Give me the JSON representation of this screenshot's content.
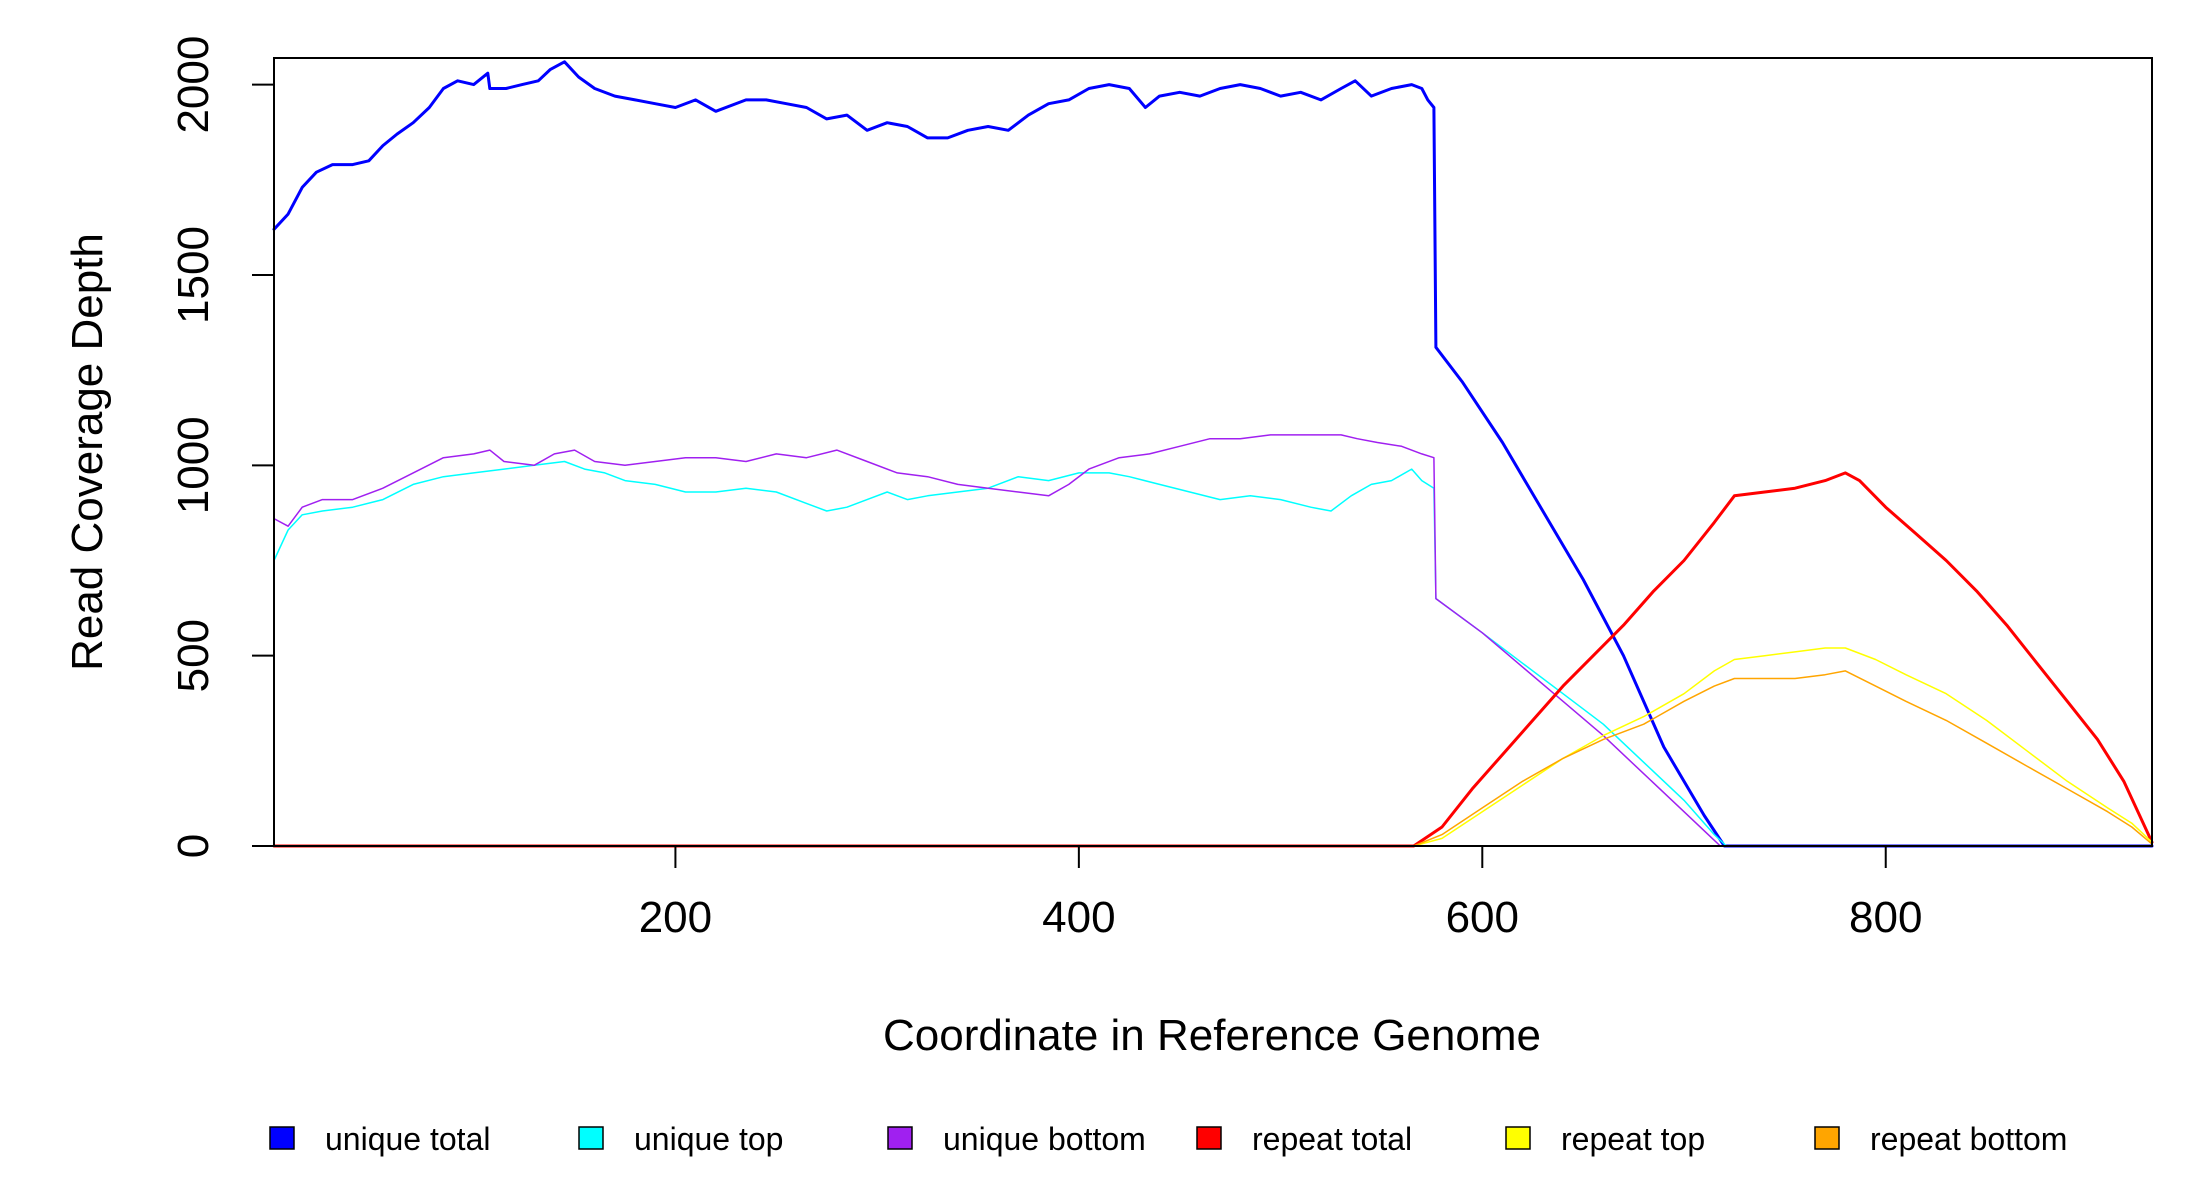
{
  "chart_data": {
    "type": "line",
    "title": "",
    "xlabel": "Coordinate in Reference Genome",
    "ylabel": "Read Coverage Depth",
    "xlim": [
      1,
      932
    ],
    "ylim": [
      0,
      2070
    ],
    "x_ticks": [
      200,
      400,
      600,
      800
    ],
    "x_tick_labels": [
      "200",
      "400",
      "600",
      "800"
    ],
    "y_ticks": [
      0,
      500,
      1000,
      1500,
      2000
    ],
    "y_tick_labels": [
      "0",
      "500",
      "1000",
      "1500",
      "2000"
    ],
    "grid": false,
    "legend_position": "bottom",
    "series": [
      {
        "name": "unique total",
        "color": "#0000FF",
        "width": 3,
        "points": [
          [
            1,
            1620
          ],
          [
            8,
            1660
          ],
          [
            15,
            1730
          ],
          [
            22,
            1770
          ],
          [
            30,
            1790
          ],
          [
            40,
            1790
          ],
          [
            48,
            1800
          ],
          [
            55,
            1840
          ],
          [
            62,
            1870
          ],
          [
            70,
            1900
          ],
          [
            78,
            1940
          ],
          [
            85,
            1990
          ],
          [
            92,
            2010
          ],
          [
            100,
            2000
          ],
          [
            107,
            2030
          ],
          [
            108,
            1990
          ],
          [
            116,
            1990
          ],
          [
            124,
            2000
          ],
          [
            132,
            2010
          ],
          [
            138,
            2040
          ],
          [
            145,
            2060
          ],
          [
            152,
            2020
          ],
          [
            160,
            1990
          ],
          [
            170,
            1970
          ],
          [
            180,
            1960
          ],
          [
            190,
            1950
          ],
          [
            200,
            1940
          ],
          [
            210,
            1960
          ],
          [
            220,
            1930
          ],
          [
            235,
            1960
          ],
          [
            245,
            1960
          ],
          [
            255,
            1950
          ],
          [
            265,
            1940
          ],
          [
            275,
            1910
          ],
          [
            285,
            1920
          ],
          [
            295,
            1880
          ],
          [
            305,
            1900
          ],
          [
            315,
            1890
          ],
          [
            325,
            1860
          ],
          [
            335,
            1860
          ],
          [
            345,
            1880
          ],
          [
            355,
            1890
          ],
          [
            365,
            1880
          ],
          [
            375,
            1920
          ],
          [
            385,
            1950
          ],
          [
            395,
            1960
          ],
          [
            405,
            1990
          ],
          [
            415,
            2000
          ],
          [
            425,
            1990
          ],
          [
            433,
            1940
          ],
          [
            440,
            1970
          ],
          [
            450,
            1980
          ],
          [
            460,
            1970
          ],
          [
            470,
            1990
          ],
          [
            480,
            2000
          ],
          [
            490,
            1990
          ],
          [
            500,
            1970
          ],
          [
            510,
            1980
          ],
          [
            520,
            1960
          ],
          [
            530,
            1990
          ],
          [
            537,
            2010
          ],
          [
            545,
            1970
          ],
          [
            555,
            1990
          ],
          [
            565,
            2000
          ],
          [
            570,
            1990
          ],
          [
            573,
            1960
          ],
          [
            576,
            1940
          ],
          [
            577,
            1310
          ],
          [
            590,
            1220
          ],
          [
            610,
            1060
          ],
          [
            630,
            880
          ],
          [
            650,
            700
          ],
          [
            670,
            500
          ],
          [
            690,
            260
          ],
          [
            710,
            80
          ],
          [
            720,
            0
          ],
          [
            932,
            0
          ]
        ]
      },
      {
        "name": "unique top",
        "color": "#00FFFF",
        "width": 1.5,
        "points": [
          [
            1,
            750
          ],
          [
            8,
            830
          ],
          [
            15,
            870
          ],
          [
            25,
            880
          ],
          [
            40,
            890
          ],
          [
            55,
            910
          ],
          [
            70,
            950
          ],
          [
            85,
            970
          ],
          [
            100,
            980
          ],
          [
            115,
            990
          ],
          [
            130,
            1000
          ],
          [
            145,
            1010
          ],
          [
            155,
            990
          ],
          [
            165,
            980
          ],
          [
            175,
            960
          ],
          [
            190,
            950
          ],
          [
            205,
            930
          ],
          [
            220,
            930
          ],
          [
            235,
            940
          ],
          [
            250,
            930
          ],
          [
            265,
            900
          ],
          [
            275,
            880
          ],
          [
            285,
            890
          ],
          [
            295,
            910
          ],
          [
            305,
            930
          ],
          [
            315,
            910
          ],
          [
            325,
            920
          ],
          [
            340,
            930
          ],
          [
            355,
            940
          ],
          [
            370,
            970
          ],
          [
            385,
            960
          ],
          [
            400,
            980
          ],
          [
            415,
            980
          ],
          [
            425,
            970
          ],
          [
            440,
            950
          ],
          [
            455,
            930
          ],
          [
            470,
            910
          ],
          [
            485,
            920
          ],
          [
            500,
            910
          ],
          [
            515,
            890
          ],
          [
            525,
            880
          ],
          [
            535,
            920
          ],
          [
            545,
            950
          ],
          [
            555,
            960
          ],
          [
            565,
            990
          ],
          [
            570,
            960
          ],
          [
            576,
            940
          ],
          [
            577,
            650
          ],
          [
            600,
            560
          ],
          [
            620,
            480
          ],
          [
            640,
            400
          ],
          [
            660,
            320
          ],
          [
            680,
            220
          ],
          [
            700,
            120
          ],
          [
            715,
            30
          ],
          [
            721,
            0
          ],
          [
            932,
            0
          ]
        ]
      },
      {
        "name": "unique bottom",
        "color": "#A020F0",
        "width": 1.5,
        "points": [
          [
            1,
            860
          ],
          [
            8,
            840
          ],
          [
            15,
            890
          ],
          [
            25,
            910
          ],
          [
            40,
            910
          ],
          [
            55,
            940
          ],
          [
            70,
            980
          ],
          [
            85,
            1020
          ],
          [
            100,
            1030
          ],
          [
            108,
            1040
          ],
          [
            115,
            1010
          ],
          [
            130,
            1000
          ],
          [
            140,
            1030
          ],
          [
            150,
            1040
          ],
          [
            160,
            1010
          ],
          [
            175,
            1000
          ],
          [
            190,
            1010
          ],
          [
            205,
            1020
          ],
          [
            220,
            1020
          ],
          [
            235,
            1010
          ],
          [
            250,
            1030
          ],
          [
            265,
            1020
          ],
          [
            280,
            1040
          ],
          [
            295,
            1010
          ],
          [
            310,
            980
          ],
          [
            325,
            970
          ],
          [
            340,
            950
          ],
          [
            355,
            940
          ],
          [
            370,
            930
          ],
          [
            385,
            920
          ],
          [
            395,
            950
          ],
          [
            405,
            990
          ],
          [
            420,
            1020
          ],
          [
            435,
            1030
          ],
          [
            450,
            1050
          ],
          [
            465,
            1070
          ],
          [
            480,
            1070
          ],
          [
            495,
            1080
          ],
          [
            510,
            1080
          ],
          [
            520,
            1080
          ],
          [
            530,
            1080
          ],
          [
            538,
            1070
          ],
          [
            548,
            1060
          ],
          [
            560,
            1050
          ],
          [
            570,
            1030
          ],
          [
            576,
            1020
          ],
          [
            577,
            650
          ],
          [
            600,
            560
          ],
          [
            620,
            470
          ],
          [
            640,
            380
          ],
          [
            660,
            290
          ],
          [
            680,
            190
          ],
          [
            700,
            90
          ],
          [
            712,
            30
          ],
          [
            718,
            0
          ],
          [
            932,
            0
          ]
        ]
      },
      {
        "name": "repeat total",
        "color": "#FF0000",
        "width": 3,
        "points": [
          [
            1,
            0
          ],
          [
            566,
            0
          ],
          [
            580,
            50
          ],
          [
            595,
            150
          ],
          [
            610,
            240
          ],
          [
            625,
            330
          ],
          [
            640,
            420
          ],
          [
            655,
            500
          ],
          [
            670,
            580
          ],
          [
            685,
            670
          ],
          [
            700,
            750
          ],
          [
            715,
            850
          ],
          [
            725,
            920
          ],
          [
            740,
            930
          ],
          [
            755,
            940
          ],
          [
            770,
            960
          ],
          [
            780,
            980
          ],
          [
            787,
            960
          ],
          [
            800,
            890
          ],
          [
            815,
            820
          ],
          [
            830,
            750
          ],
          [
            845,
            670
          ],
          [
            860,
            580
          ],
          [
            875,
            480
          ],
          [
            890,
            380
          ],
          [
            905,
            280
          ],
          [
            918,
            170
          ],
          [
            925,
            90
          ],
          [
            932,
            10
          ]
        ]
      },
      {
        "name": "repeat top",
        "color": "#FFFF00",
        "width": 1.5,
        "points": [
          [
            1,
            0
          ],
          [
            566,
            0
          ],
          [
            580,
            20
          ],
          [
            600,
            90
          ],
          [
            620,
            160
          ],
          [
            640,
            230
          ],
          [
            660,
            290
          ],
          [
            680,
            340
          ],
          [
            700,
            400
          ],
          [
            715,
            460
          ],
          [
            725,
            490
          ],
          [
            740,
            500
          ],
          [
            755,
            510
          ],
          [
            770,
            520
          ],
          [
            780,
            520
          ],
          [
            795,
            490
          ],
          [
            810,
            450
          ],
          [
            830,
            400
          ],
          [
            850,
            330
          ],
          [
            870,
            250
          ],
          [
            890,
            170
          ],
          [
            910,
            100
          ],
          [
            922,
            60
          ],
          [
            932,
            10
          ]
        ]
      },
      {
        "name": "repeat bottom",
        "color": "#FFA500",
        "width": 1.5,
        "points": [
          [
            1,
            0
          ],
          [
            566,
            0
          ],
          [
            580,
            30
          ],
          [
            600,
            100
          ],
          [
            620,
            170
          ],
          [
            640,
            230
          ],
          [
            660,
            280
          ],
          [
            680,
            320
          ],
          [
            700,
            380
          ],
          [
            715,
            420
          ],
          [
            725,
            440
          ],
          [
            740,
            440
          ],
          [
            755,
            440
          ],
          [
            770,
            450
          ],
          [
            780,
            460
          ],
          [
            795,
            420
          ],
          [
            810,
            380
          ],
          [
            830,
            330
          ],
          [
            850,
            270
          ],
          [
            870,
            210
          ],
          [
            890,
            150
          ],
          [
            910,
            90
          ],
          [
            922,
            50
          ],
          [
            932,
            5
          ]
        ]
      }
    ]
  }
}
